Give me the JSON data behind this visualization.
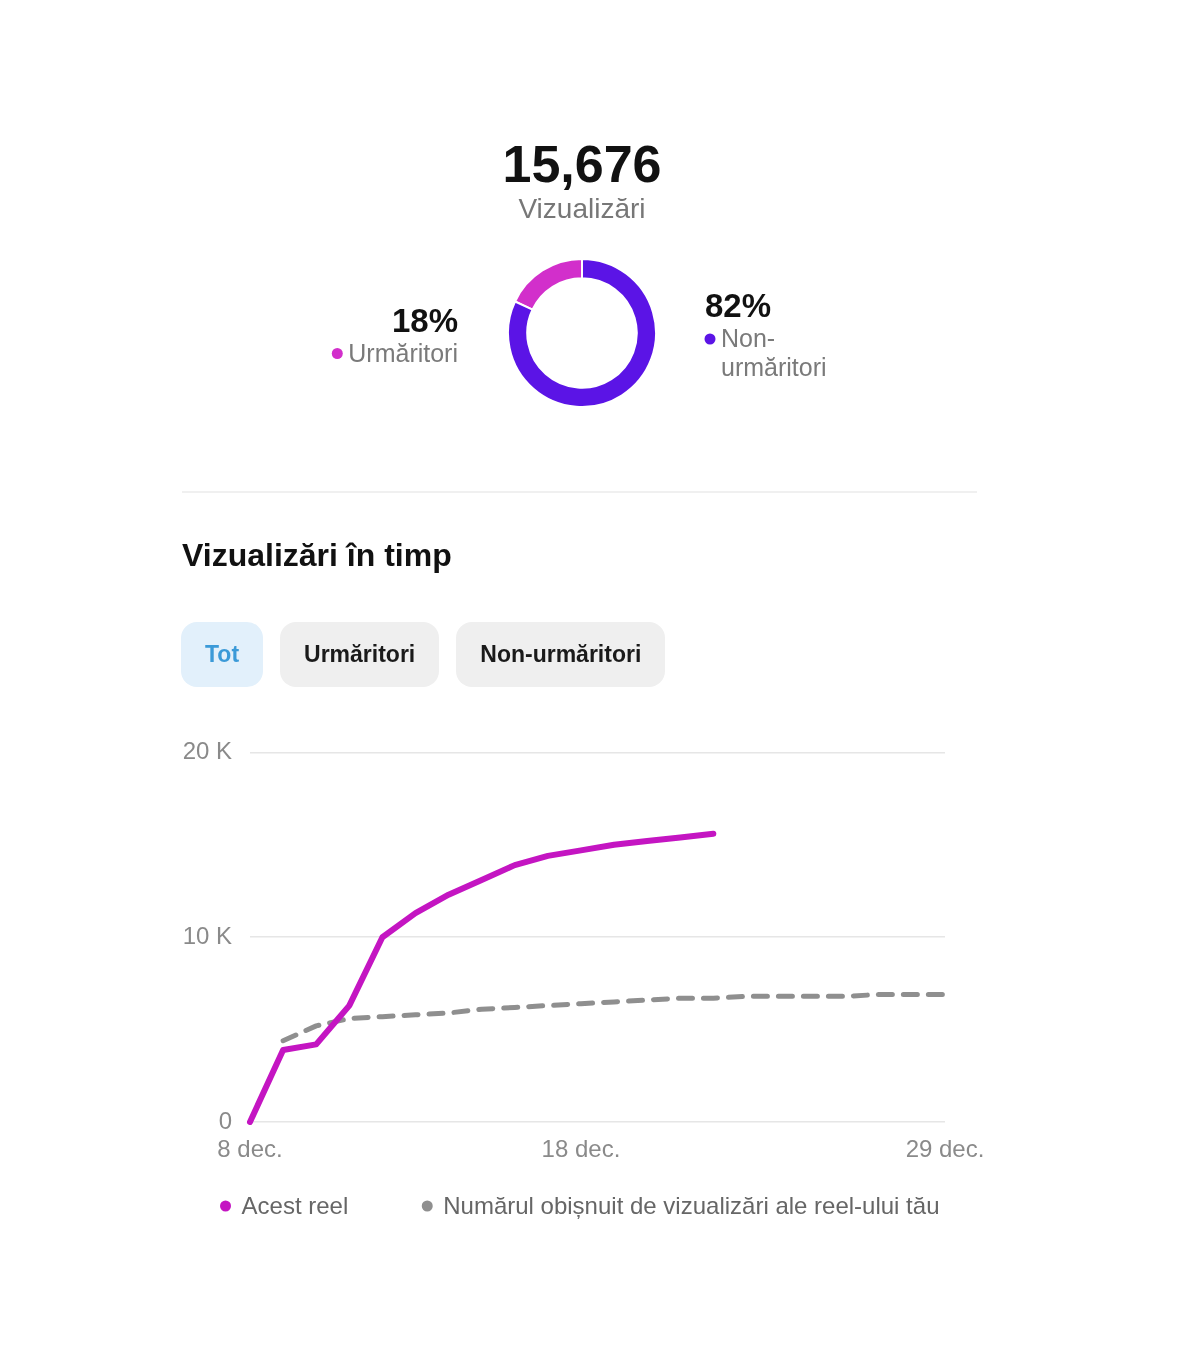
{
  "chart_data": [
    {
      "type": "donut",
      "title": "15,676",
      "subtitle": "Vizualizări",
      "categories": [
        "Urmăritori",
        "Non-urmăritori"
      ],
      "values": [
        18,
        82
      ],
      "colors": [
        "#d22fcb",
        "#5b14e6"
      ],
      "value_labels": [
        "18%",
        "82%"
      ],
      "legend": "right"
    },
    {
      "type": "line",
      "title": "Vizualizări în timp",
      "annotations": [
        "Tot",
        "Urmăritori",
        "Non-urmăritori"
      ],
      "xlim": [
        "--12-08",
        "--12-29"
      ],
      "xticks": [
        {
          "value": "--12-08",
          "label": "8 dec."
        },
        {
          "value": "--12-18",
          "label": "18 dec."
        },
        {
          "value": "--12-29",
          "label": "29 dec."
        }
      ],
      "ylim": [
        0,
        20000
      ],
      "yticks": [
        0,
        {
          "value": 10000,
          "label": "10 K"
        },
        {
          "value": 20000,
          "label": "20 K"
        }
      ],
      "grid": "y",
      "legend": "bottom",
      "series": [
        {
          "name": "Acest reel",
          "color": "#c415c2",
          "x": [
            "--12-08",
            "--12-09",
            "--12-10",
            "--12-11",
            "--12-12",
            "--12-13",
            "--12-14",
            "--12-15",
            "--12-16",
            "--12-17",
            "--12-18",
            "--12-19",
            "--12-20",
            "--12-21",
            "--12-22"
          ],
          "values": [
            0,
            3900,
            4200,
            6300,
            10000,
            11300,
            12300,
            13100,
            13900,
            14400,
            14700,
            15000,
            15200,
            15400,
            15600
          ]
        },
        {
          "name": "Numărul obișnuit de vizualizări ale reel-ului tău",
          "color": "#8f8f8f",
          "line_style": "dashed",
          "x": [
            "--12-09",
            "--12-10",
            "--12-11",
            "--12-12",
            "--12-13",
            "--12-14",
            "--12-15",
            "--12-16",
            "--12-17",
            "--12-18",
            "--12-19",
            "--12-20",
            "--12-21",
            "--12-22",
            "--12-23",
            "--12-24",
            "--12-25",
            "--12-26",
            "--12-27",
            "--12-28",
            "--12-29"
          ],
          "values": [
            4400,
            5200,
            5600,
            5700,
            5800,
            5900,
            6100,
            6200,
            6300,
            6400,
            6500,
            6600,
            6700,
            6700,
            6800,
            6800,
            6800,
            6800,
            6900,
            6900,
            6900
          ]
        }
      ]
    }
  ]
}
